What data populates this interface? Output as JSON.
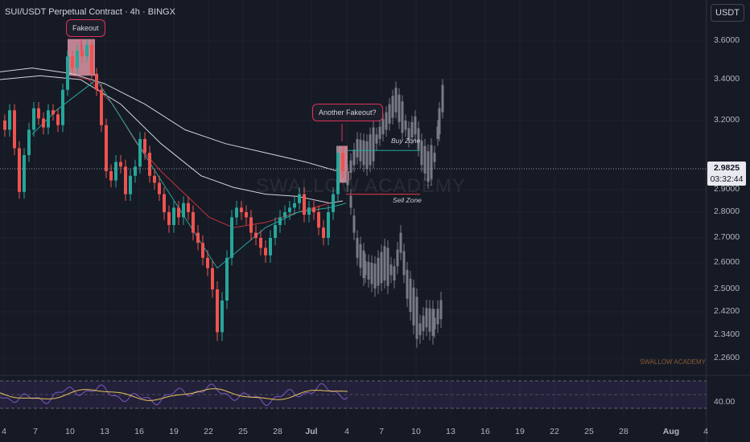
{
  "header": {
    "title": "SUI/USDT Perpetual Contract · 4h · BINGX"
  },
  "currency_label": "USDT",
  "annotations": {
    "fakeout": "Fakeout",
    "another_fakeout": "Another Fakeout?",
    "buy_zone": "Buy Zone",
    "sell_zone": "Sell Zone"
  },
  "watermark": "SWALLOW ACADEMY",
  "watermark_small": "SWALLOW ACADEMY",
  "current_price": {
    "price": "2.9825",
    "countdown": "03:32:44"
  },
  "colors": {
    "up": "#26a69a",
    "down": "#ef5350",
    "projection": "#787b86",
    "ema_white": "#d1d4dc",
    "ema_red": "#c2333f",
    "ema_green": "#26a69a",
    "rsi": "#7e57c2",
    "rsi_ma": "#e8c35a",
    "highlight": "#f8a5b5",
    "background": "#161a25"
  },
  "chart_data": {
    "type": "candlestick",
    "y_axis_ticks": [
      "3.6000",
      "3.4000",
      "3.2000",
      "2.9000",
      "2.8000",
      "2.7000",
      "2.6000",
      "2.5000",
      "2.4200",
      "2.3400",
      "2.2600"
    ],
    "x_axis_ticks": [
      "4",
      "7",
      "10",
      "13",
      "16",
      "19",
      "22",
      "25",
      "28",
      "Jul",
      "4",
      "7",
      "10",
      "13",
      "16",
      "19",
      "22",
      "25",
      "28",
      "Aug",
      "4"
    ],
    "rsi_axis_tick": "40.00",
    "price_path": [
      [
        0,
        3.2
      ],
      [
        6,
        3.16
      ],
      [
        12,
        3.25
      ],
      [
        18,
        3.08
      ],
      [
        24,
        2.89
      ],
      [
        30,
        3.05
      ],
      [
        36,
        3.16
      ],
      [
        42,
        3.26
      ],
      [
        48,
        3.21
      ],
      [
        54,
        3.17
      ],
      [
        60,
        3.25
      ],
      [
        66,
        3.23
      ],
      [
        72,
        3.18
      ],
      [
        78,
        3.35
      ],
      [
        84,
        3.52
      ],
      [
        90,
        3.46
      ],
      [
        96,
        3.55
      ],
      [
        102,
        3.52
      ],
      [
        108,
        3.58
      ],
      [
        114,
        3.43
      ],
      [
        120,
        3.35
      ],
      [
        126,
        3.18
      ],
      [
        132,
        2.98
      ],
      [
        138,
        2.94
      ],
      [
        144,
        3.02
      ],
      [
        150,
        3.0
      ],
      [
        156,
        2.88
      ],
      [
        162,
        2.96
      ],
      [
        168,
        3.0
      ],
      [
        174,
        3.12
      ],
      [
        180,
        3.06
      ],
      [
        186,
        2.96
      ],
      [
        192,
        2.93
      ],
      [
        198,
        2.88
      ],
      [
        204,
        2.8
      ],
      [
        210,
        2.75
      ],
      [
        216,
        2.82
      ],
      [
        222,
        2.78
      ],
      [
        228,
        2.84
      ],
      [
        234,
        2.8
      ],
      [
        240,
        2.72
      ],
      [
        246,
        2.68
      ],
      [
        252,
        2.62
      ],
      [
        258,
        2.58
      ],
      [
        264,
        2.5
      ],
      [
        270,
        2.35
      ],
      [
        276,
        2.46
      ],
      [
        282,
        2.62
      ],
      [
        288,
        2.78
      ],
      [
        294,
        2.82
      ],
      [
        300,
        2.8
      ],
      [
        306,
        2.78
      ],
      [
        312,
        2.72
      ],
      [
        318,
        2.7
      ],
      [
        324,
        2.66
      ],
      [
        330,
        2.63
      ],
      [
        336,
        2.7
      ],
      [
        342,
        2.75
      ],
      [
        348,
        2.78
      ],
      [
        354,
        2.8
      ],
      [
        360,
        2.82
      ],
      [
        366,
        2.84
      ],
      [
        372,
        2.88
      ],
      [
        378,
        2.79
      ],
      [
        384,
        2.82
      ],
      [
        390,
        2.8
      ],
      [
        396,
        2.74
      ],
      [
        402,
        2.7
      ],
      [
        408,
        2.8
      ],
      [
        414,
        2.88
      ],
      [
        420,
        3.06
      ],
      [
        426,
        2.98
      ],
      [
        432,
        2.94
      ]
    ],
    "candle_colors": [
      "down",
      "down",
      "up",
      "down",
      "down",
      "up",
      "up",
      "up",
      "down",
      "down",
      "up",
      "down",
      "down",
      "up",
      "up",
      "down",
      "up",
      "down",
      "up",
      "down",
      "down",
      "down",
      "down",
      "down",
      "up",
      "down",
      "down",
      "up",
      "up",
      "up",
      "down",
      "down",
      "down",
      "down",
      "down",
      "down",
      "up",
      "down",
      "up",
      "down",
      "down",
      "down",
      "down",
      "down",
      "down",
      "down",
      "up",
      "up",
      "up",
      "up",
      "down",
      "down",
      "down",
      "down",
      "down",
      "down",
      "up",
      "up",
      "up",
      "up",
      "up",
      "up",
      "up",
      "down",
      "up",
      "down",
      "down",
      "down",
      "up",
      "up",
      "up",
      "down",
      "down"
    ],
    "projection_bullish": [
      [
        432,
        2.96
      ],
      [
        444,
        3.08
      ],
      [
        456,
        3.05
      ],
      [
        468,
        3.12
      ],
      [
        480,
        3.2
      ],
      [
        492,
        3.3
      ],
      [
        500,
        3.22
      ],
      [
        508,
        3.14
      ],
      [
        516,
        3.18
      ],
      [
        524,
        3.06
      ],
      [
        532,
        3.0
      ],
      [
        540,
        3.04
      ],
      [
        546,
        3.2
      ],
      [
        552,
        3.36
      ]
    ],
    "projection_bearish": [
      [
        432,
        2.94
      ],
      [
        444,
        2.66
      ],
      [
        454,
        2.58
      ],
      [
        466,
        2.55
      ],
      [
        478,
        2.6
      ],
      [
        490,
        2.56
      ],
      [
        498,
        2.68
      ],
      [
        506,
        2.52
      ],
      [
        514,
        2.44
      ],
      [
        522,
        2.36
      ],
      [
        530,
        2.4
      ],
      [
        540,
        2.38
      ],
      [
        550,
        2.44
      ]
    ],
    "highlight_zones": [
      {
        "x_range": [
          84,
          118
        ],
        "price_range": [
          3.42,
          3.61
        ]
      },
      {
        "x_range": [
          418,
          432
        ],
        "price_range": [
          2.93,
          3.09
        ]
      }
    ],
    "buy_zone_price": 3.07,
    "sell_zone_price": 2.88,
    "current_price_value": 2.9825
  }
}
